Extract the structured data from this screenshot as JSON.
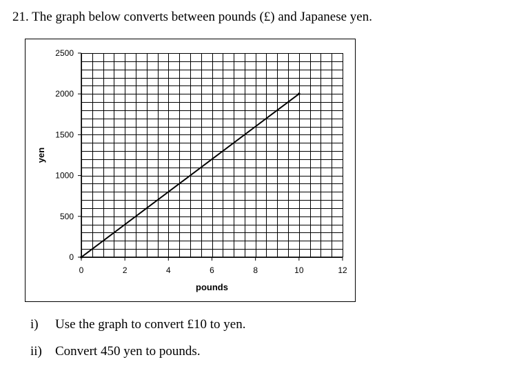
{
  "question": {
    "text": "21. The graph below converts between pounds (£) and Japanese yen."
  },
  "parts": [
    {
      "num": "i)",
      "text": "Use the graph to convert £10 to yen."
    },
    {
      "num": "ii)",
      "text": "Convert 450 yen to pounds."
    }
  ],
  "chart_data": {
    "type": "line",
    "title": "",
    "xlabel": "pounds",
    "ylabel": "yen",
    "xlim": [
      0,
      12
    ],
    "ylim": [
      0,
      2500
    ],
    "x_ticks": [
      0,
      2,
      4,
      6,
      8,
      10,
      12
    ],
    "y_ticks": [
      0,
      500,
      1000,
      1500,
      2000,
      2500
    ],
    "x_minor_step": 0.5,
    "y_minor_step": 100,
    "grid": true,
    "series": [
      {
        "x": [
          0,
          10
        ],
        "y": [
          0,
          2000
        ]
      }
    ]
  }
}
